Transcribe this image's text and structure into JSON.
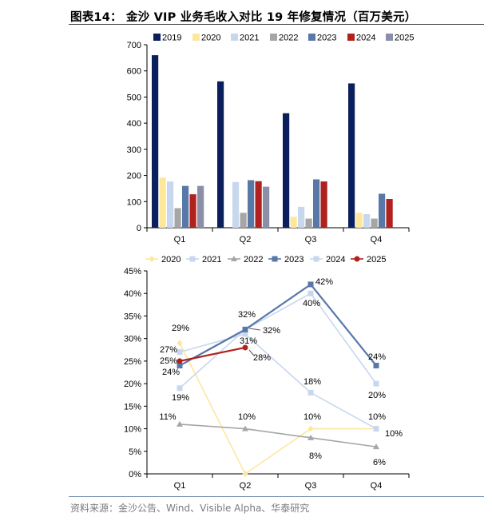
{
  "figure": {
    "title": "图表14：  金沙 VIP 业务毛收入对比 19 年修复情况（百万美元）",
    "source": "资料来源：金沙公告、Wind、Visible Alpha、华泰研究"
  },
  "chart_data": [
    {
      "type": "bar",
      "title": "",
      "categories": [
        "Q1",
        "Q2",
        "Q3",
        "Q4"
      ],
      "ylim": [
        0,
        700
      ],
      "yticks": [
        0,
        100,
        200,
        300,
        400,
        500,
        600,
        700
      ],
      "legend_position": "top",
      "series": [
        {
          "name": "2019",
          "color": "#0b1f5c",
          "values": [
            660,
            560,
            438,
            552
          ]
        },
        {
          "name": "2020",
          "color": "#fde79b",
          "values": [
            192,
            0,
            42,
            57
          ]
        },
        {
          "name": "2021",
          "color": "#c7d8ee",
          "values": [
            177,
            175,
            80,
            52
          ]
        },
        {
          "name": "2022",
          "color": "#a6a6a6",
          "values": [
            75,
            57,
            35,
            35
          ]
        },
        {
          "name": "2023",
          "color": "#5878a8",
          "values": [
            160,
            182,
            185,
            130
          ]
        },
        {
          "name": "2024",
          "color": "#b0221e",
          "values": [
            128,
            178,
            177,
            110
          ]
        },
        {
          "name": "2025",
          "color": "#8b90a8",
          "values": [
            160,
            157,
            null,
            null
          ]
        }
      ]
    },
    {
      "type": "line",
      "title": "",
      "categories": [
        "Q1",
        "Q2",
        "Q3",
        "Q4"
      ],
      "ylim": [
        0,
        45
      ],
      "yticks": [
        "0%",
        "5%",
        "10%",
        "15%",
        "20%",
        "25%",
        "30%",
        "35%",
        "40%",
        "45%"
      ],
      "legend_position": "top",
      "series": [
        {
          "name": "2020",
          "color": "#fde7a0",
          "marker": "diamond",
          "values": [
            29,
            0,
            10,
            10
          ],
          "labels": [
            "29%",
            "",
            "",
            "10%"
          ]
        },
        {
          "name": "2021",
          "color": "#c7d8ee",
          "marker": "square",
          "values": [
            27,
            31,
            18,
            10
          ],
          "labels": [
            "27%",
            "31%",
            "18%",
            "10%"
          ]
        },
        {
          "name": "2022",
          "color": "#a6a6a6",
          "marker": "triangle",
          "values": [
            11,
            10,
            8,
            6
          ],
          "labels": [
            "11%",
            "10%",
            "8%",
            "6%"
          ]
        },
        {
          "name": "2023",
          "color": "#5878a8",
          "marker": "square",
          "values": [
            24,
            32,
            42,
            24
          ],
          "labels": [
            "24%",
            "32%",
            "42%",
            "24%"
          ]
        },
        {
          "name": "2024",
          "color": "#c7d8ee",
          "marker": "square",
          "values": [
            19,
            32,
            40,
            20
          ],
          "labels": [
            "19%",
            "32%",
            "40%",
            "20%"
          ]
        },
        {
          "name": "2025",
          "color": "#b0221e",
          "marker": "circle",
          "values": [
            25,
            28,
            null,
            null
          ],
          "labels": [
            "25%",
            "28%",
            "",
            ""
          ]
        }
      ],
      "extra_labels": [
        "10%",
        "10%"
      ]
    }
  ]
}
